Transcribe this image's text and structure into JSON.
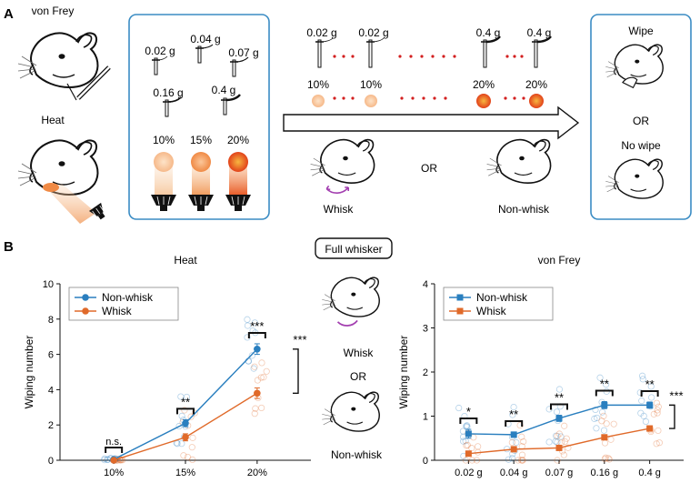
{
  "panel_a": {
    "letter": "A",
    "von_frey_label": "von Frey",
    "heat_label": "Heat",
    "stim_box": {
      "filaments": [
        "0.02 g",
        "0.04 g",
        "0.07 g",
        "0.16 g",
        "0.4 g"
      ],
      "heat_levels": [
        "10%",
        "15%",
        "20%"
      ]
    },
    "sequence": {
      "filament_labels": [
        "0.02 g",
        "0.02 g",
        "0.4 g",
        "0.4 g"
      ],
      "heat_labels": [
        "10%",
        "10%",
        "20%",
        "20%"
      ],
      "whisk_label": "Whisk",
      "or_label": "OR",
      "nonwhisk_label": "Non-whisk"
    },
    "outcome_box": {
      "wipe_label": "Wipe",
      "or_label": "OR",
      "nowipe_label": "No wipe"
    }
  },
  "panel_b": {
    "letter": "B",
    "center_title": "Full whisker",
    "whisk_label": "Whisk",
    "or_label": "OR",
    "nonwhisk_label": "Non-whisk"
  },
  "colors": {
    "blue": "#2a7fbf",
    "orange": "#e06a2a",
    "box": "#3a8cc4"
  },
  "chart_data": [
    {
      "type": "line",
      "title": "Heat",
      "xlabel": "",
      "ylabel": "Wiping number",
      "categories": [
        "10%",
        "15%",
        "20%"
      ],
      "ylim": [
        0,
        10
      ],
      "yticks": [
        "0",
        "2",
        "4",
        "6",
        "8",
        "10"
      ],
      "series": [
        {
          "name": "Non-whisk",
          "marker": "circle",
          "values": [
            0.05,
            2.1,
            6.3
          ],
          "errors": [
            0.05,
            0.2,
            0.3
          ]
        },
        {
          "name": "Whisk",
          "marker": "circle",
          "values": [
            0.0,
            1.3,
            3.8
          ],
          "errors": [
            0.0,
            0.2,
            0.3
          ]
        }
      ],
      "significance": [
        {
          "category": "10%",
          "label": "n.s."
        },
        {
          "category": "15%",
          "label": "**"
        },
        {
          "category": "20%",
          "label": "***"
        },
        {
          "category": "overall",
          "label": "***"
        }
      ],
      "legend": "top-left"
    },
    {
      "type": "line",
      "title": "von Frey",
      "xlabel": "",
      "ylabel": "Wiping number",
      "categories": [
        "0.02 g",
        "0.04 g",
        "0.07 g",
        "0.16 g",
        "0.4 g"
      ],
      "ylim": [
        0,
        4
      ],
      "yticks": [
        "0",
        "1",
        "2",
        "3",
        "4"
      ],
      "series": [
        {
          "name": "Non-whisk",
          "marker": "square",
          "values": [
            0.6,
            0.58,
            0.95,
            1.25,
            1.25
          ],
          "errors": [
            0.1,
            0.06,
            0.07,
            0.08,
            0.07
          ]
        },
        {
          "name": "Whisk",
          "marker": "square",
          "values": [
            0.15,
            0.25,
            0.28,
            0.52,
            0.72
          ],
          "errors": [
            0.05,
            0.03,
            0.04,
            0.05,
            0.06
          ]
        }
      ],
      "significance": [
        {
          "category": "0.02 g",
          "label": "*"
        },
        {
          "category": "0.04 g",
          "label": "**"
        },
        {
          "category": "0.07 g",
          "label": "**"
        },
        {
          "category": "0.16 g",
          "label": "**"
        },
        {
          "category": "0.4 g",
          "label": "**"
        },
        {
          "category": "overall",
          "label": "***"
        }
      ],
      "legend": "top-left"
    }
  ]
}
